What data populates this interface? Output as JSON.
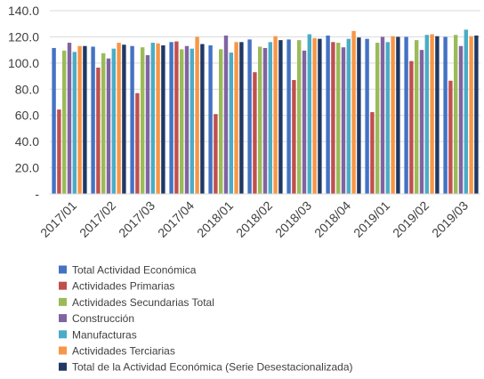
{
  "chart_data": {
    "type": "bar",
    "title": "",
    "xlabel": "",
    "ylabel": "",
    "ylim": [
      0,
      140
    ],
    "yticks": [
      {
        "value": 0,
        "label": "-"
      },
      {
        "value": 20,
        "label": "20.0"
      },
      {
        "value": 40,
        "label": "40.0"
      },
      {
        "value": 60,
        "label": "60.0"
      },
      {
        "value": 80,
        "label": "80.0"
      },
      {
        "value": 100,
        "label": "100.0"
      },
      {
        "value": 120,
        "label": "120.0"
      },
      {
        "value": 140,
        "label": "140.0"
      }
    ],
    "grid": true,
    "legend_position": "bottom",
    "categories": [
      "2017/01",
      "2017/02",
      "2017/03",
      "2017/04",
      "2018/01",
      "2018/02",
      "2018/03",
      "2018/04",
      "2019/01",
      "2019/02",
      "2019/03"
    ],
    "series": [
      {
        "name": "Total Actividad Económica",
        "color": "#4472C4",
        "values": [
          111.5,
          112.5,
          113.0,
          116.0,
          113.5,
          118.0,
          118.0,
          121.0,
          118.5,
          120.0,
          120.0
        ]
      },
      {
        "name": "Actividades Primarias",
        "color": "#C0504D",
        "values": [
          64.5,
          96.5,
          77.0,
          116.5,
          61.0,
          93.0,
          87.0,
          116.0,
          62.5,
          101.5,
          86.5
        ]
      },
      {
        "name": "Actividades Secundarias Total",
        "color": "#9BBB59",
        "values": [
          109.5,
          107.5,
          112.0,
          110.5,
          110.5,
          112.5,
          117.5,
          115.5,
          115.5,
          117.5,
          121.5
        ]
      },
      {
        "name": "Construcción",
        "color": "#8064A2",
        "values": [
          115.5,
          103.5,
          106.0,
          113.0,
          121.0,
          111.5,
          109.5,
          112.0,
          120.0,
          110.0,
          113.0
        ]
      },
      {
        "name": "Manufacturas",
        "color": "#4BACC6",
        "values": [
          108.5,
          111.0,
          115.5,
          111.0,
          108.0,
          116.0,
          122.0,
          118.5,
          116.0,
          121.5,
          125.5
        ]
      },
      {
        "name": "Actividades Terciarias",
        "color": "#F79646",
        "values": [
          113.0,
          115.5,
          115.0,
          120.0,
          116.0,
          120.5,
          119.0,
          124.5,
          120.5,
          122.0,
          120.5
        ]
      },
      {
        "name": "Total de la Actividad Económica (Serie Desestacionalizada)",
        "color": "#1F3864",
        "values": [
          113.0,
          114.0,
          113.5,
          114.5,
          116.0,
          117.5,
          118.5,
          119.5,
          120.0,
          120.5,
          121.0
        ]
      }
    ]
  }
}
